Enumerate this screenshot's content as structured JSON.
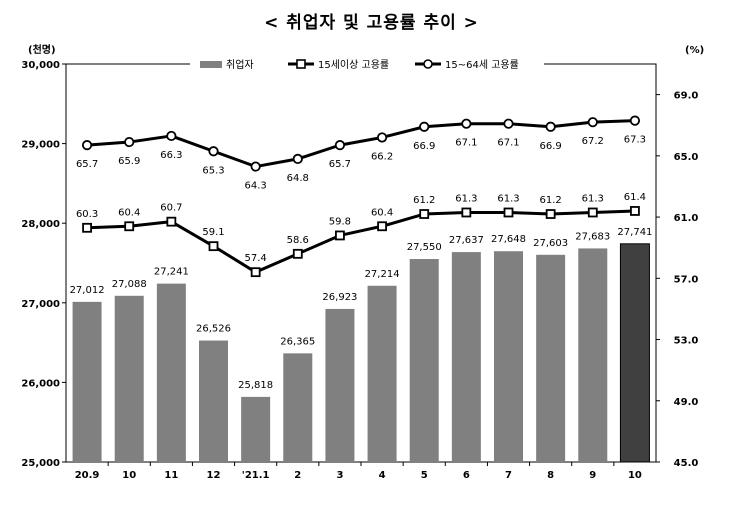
{
  "title": "< 취업자 및 고용률 추이 >",
  "chart_data": {
    "type": "bar",
    "categories": [
      "20.9",
      "10",
      "11",
      "12",
      "'21.1",
      "2",
      "3",
      "4",
      "5",
      "6",
      "7",
      "8",
      "9",
      "10"
    ],
    "left_axis": {
      "unit": "(천명)",
      "ylim": [
        25000,
        30000
      ],
      "ticks": [
        "25,000",
        "26,000",
        "27,000",
        "28,000",
        "29,000",
        "30,000"
      ]
    },
    "right_axis": {
      "unit": "(%)",
      "ylim": [
        45.0,
        71.0
      ],
      "ticks": [
        "45.0",
        "49.0",
        "53.0",
        "57.0",
        "61.0",
        "65.0",
        "69.0"
      ]
    },
    "series": [
      {
        "name": "취업자",
        "type": "bar",
        "axis": "left",
        "values": [
          27012,
          27088,
          27241,
          26526,
          25818,
          26365,
          26923,
          27214,
          27550,
          27637,
          27648,
          27603,
          27683,
          27741
        ],
        "labels": [
          "27,012",
          "27,088",
          "27,241",
          "26,526",
          "25,818",
          "26,365",
          "26,923",
          "27,214",
          "27,550",
          "27,637",
          "27,648",
          "27,603",
          "27,683",
          "27,741"
        ],
        "color": "#808080",
        "highlight_color": "#404040"
      },
      {
        "name": "15세이상 고용률",
        "type": "line",
        "marker": "square",
        "axis": "right",
        "values": [
          60.3,
          60.4,
          60.7,
          59.1,
          57.4,
          58.6,
          59.8,
          60.4,
          61.2,
          61.3,
          61.3,
          61.2,
          61.3,
          61.4
        ],
        "labels": [
          "60.3",
          "60.4",
          "60.7",
          "59.1",
          "57.4",
          "58.6",
          "59.8",
          "60.4",
          "61.2",
          "61.3",
          "61.3",
          "61.2",
          "61.3",
          "61.4"
        ]
      },
      {
        "name": "15~64세 고용률",
        "type": "line",
        "marker": "circle",
        "axis": "right",
        "values": [
          65.7,
          65.9,
          66.3,
          65.3,
          64.3,
          64.8,
          65.7,
          66.2,
          66.9,
          67.1,
          67.1,
          66.9,
          67.2,
          67.3
        ],
        "labels": [
          "65.7",
          "65.9",
          "66.3",
          "65.3",
          "64.3",
          "64.8",
          "65.7",
          "66.2",
          "66.9",
          "67.1",
          "67.1",
          "66.9",
          "67.2",
          "67.3"
        ]
      }
    ],
    "legend_position": "top-center",
    "grid": false
  }
}
